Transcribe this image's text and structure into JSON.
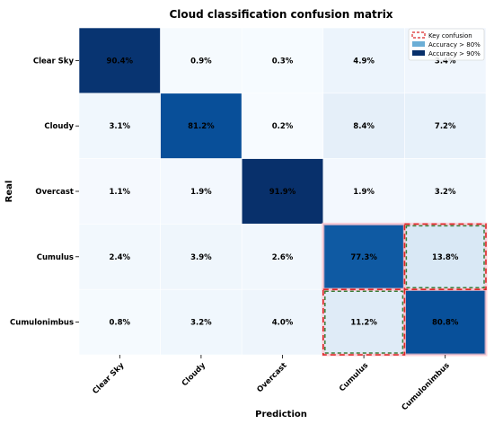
{
  "chart_data": {
    "type": "heatmap",
    "title": "Cloud classification confusion matrix",
    "xlabel": "Prediction",
    "ylabel": "Real",
    "categories": [
      "Clear Sky",
      "Cloudy",
      "Overcast",
      "Cumulus",
      "Cumulonimbus"
    ],
    "values": [
      [
        90.4,
        0.9,
        0.3,
        4.9,
        3.4
      ],
      [
        3.1,
        81.2,
        0.2,
        8.4,
        7.2
      ],
      [
        1.1,
        1.9,
        91.9,
        1.9,
        3.2
      ],
      [
        2.4,
        3.9,
        2.6,
        77.3,
        13.8
      ],
      [
        0.8,
        3.2,
        4.0,
        11.2,
        80.8
      ]
    ],
    "value_suffix": "%",
    "colormap": "Blues",
    "highlighted_cells": [
      [
        3,
        3
      ],
      [
        3,
        4
      ],
      [
        4,
        3
      ],
      [
        4,
        4
      ]
    ],
    "dashed_box_cells": [
      [
        3,
        4
      ],
      [
        4,
        3
      ]
    ],
    "highlight_colors": {
      "key_confusion": "#ffc0cb",
      "dashed_border": "#dc2626",
      "inner_border": "#3a7d3a"
    },
    "legend": {
      "placement": "top-right",
      "items": [
        {
          "label": "Key confusion",
          "style": "dashed",
          "color": "#dc2626"
        },
        {
          "label": "Accuracy > 80%",
          "style": "fill",
          "color": "#6baed6"
        },
        {
          "label": "Accuracy > 90%",
          "style": "fill",
          "color": "#08306b"
        }
      ]
    }
  }
}
